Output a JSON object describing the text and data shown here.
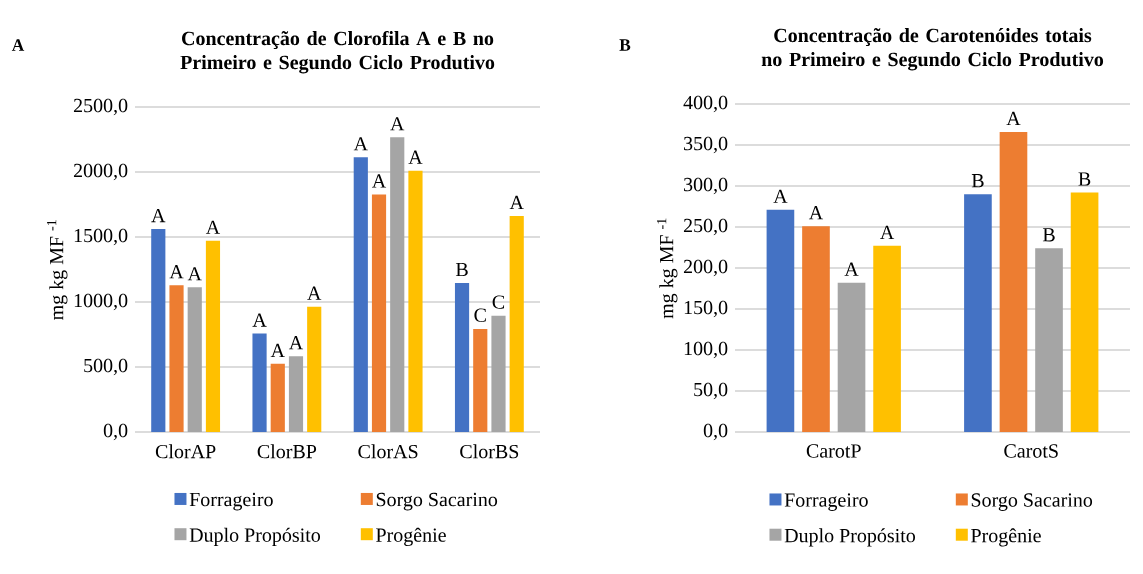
{
  "chart_data": [
    {
      "type": "bar",
      "title": "Concentração de Clorofila A e B no Primeiro e Segundo Ciclo Produtivo",
      "ylabel": "mg kg MF $^{-1}$",
      "categories": [
        "ClorAP",
        "ClorBP",
        "ClorAS",
        "ClorBS"
      ],
      "series": [
        {
          "name": "Forrageiro",
          "color": "#4472c4",
          "values": [
            1561,
            757,
            2113,
            1146
          ],
          "value_labels": [
            "A",
            "A",
            "A",
            "B"
          ]
        },
        {
          "name": "Sorgo Sacarino",
          "color": "#ed7d31",
          "values": [
            1129,
            524,
            1827,
            793
          ],
          "value_labels": [
            "A",
            "A",
            "A",
            "C"
          ]
        },
        {
          "name": "Duplo Propósito",
          "color": "#a5a5a5",
          "values": [
            1113,
            583,
            2267,
            894
          ],
          "value_labels": [
            "A",
            "A",
            "A",
            "C"
          ]
        },
        {
          "name": "Progênie",
          "color": "#ffc000",
          "values": [
            1471,
            964,
            2010,
            1662
          ],
          "value_labels": [
            "A",
            "A",
            "A",
            "A"
          ]
        }
      ],
      "ylim": [
        0,
        2500
      ],
      "yticks": [
        {
          "value": 0,
          "label": "0,0"
        },
        {
          "value": 500,
          "label": "500,0"
        },
        {
          "value": 1000,
          "label": "1000,0"
        },
        {
          "value": 1500,
          "label": "1500,0"
        },
        {
          "value": 2000,
          "label": "2000,0"
        },
        {
          "value": 2500,
          "label": "2500,0"
        }
      ],
      "grid": "y",
      "legend": "bottom",
      "annotations": [
        "A"
      ]
    },
    {
      "type": "bar",
      "title": "Concentração de Carotenóides totais no Primeiro e Segundo Ciclo Produtivo",
      "ylabel": "mg kg MF $^{-1}$",
      "categories": [
        "CarotP",
        "CarotS"
      ],
      "series": [
        {
          "name": "Forrageiro",
          "color": "#4472c4",
          "values": [
            271,
            290
          ],
          "value_labels": [
            "A",
            "B"
          ]
        },
        {
          "name": "Sorgo Sacarino",
          "color": "#ed7d31",
          "values": [
            251,
            366
          ],
          "value_labels": [
            "A",
            "A"
          ]
        },
        {
          "name": "Duplo Propósito",
          "color": "#a5a5a5",
          "values": [
            182,
            224
          ],
          "value_labels": [
            "A",
            "B"
          ]
        },
        {
          "name": "Progênie",
          "color": "#ffc000",
          "values": [
            227,
            292
          ],
          "value_labels": [
            "A",
            "B"
          ]
        }
      ],
      "ylim": [
        0,
        400
      ],
      "yticks": [
        {
          "value": 0,
          "label": "0,0"
        },
        {
          "value": 50,
          "label": "50,0"
        },
        {
          "value": 100,
          "label": "100,0"
        },
        {
          "value": 150,
          "label": "150,0"
        },
        {
          "value": 200,
          "label": "200,0"
        },
        {
          "value": 250,
          "label": "250,0"
        },
        {
          "value": 300,
          "label": "300,0"
        },
        {
          "value": 350,
          "label": "350,0"
        },
        {
          "value": 400,
          "label": "400,0"
        }
      ],
      "grid": "y",
      "legend": "bottom",
      "annotations": [
        "B"
      ]
    }
  ]
}
